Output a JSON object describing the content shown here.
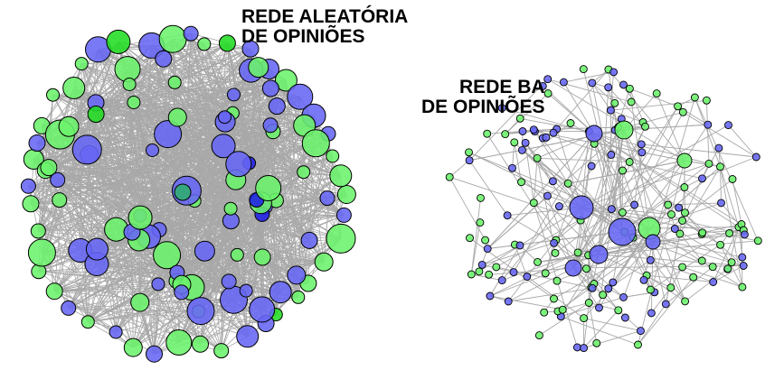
{
  "networks": [
    {
      "id": "random",
      "title_line1": "REDE ALEATÓRIA",
      "title_line2": "DE OPINIÕES",
      "node_count": 120,
      "edge_count": 1500,
      "seed": 7
    },
    {
      "id": "ba",
      "title_line1": "REDE BA",
      "title_line2": "DE OPINIÕES",
      "node_count": 160,
      "edge_count": 330,
      "seed": 11
    }
  ],
  "colors": {
    "opinion_a": "#6666f5",
    "opinion_a_dark": "#1f1fe6",
    "opinion_b": "#6bf26b",
    "opinion_b_dark": "#22dd22",
    "mixed": "#2fae6e",
    "edge": "#a8a8a8",
    "node_stroke": "#000000"
  }
}
